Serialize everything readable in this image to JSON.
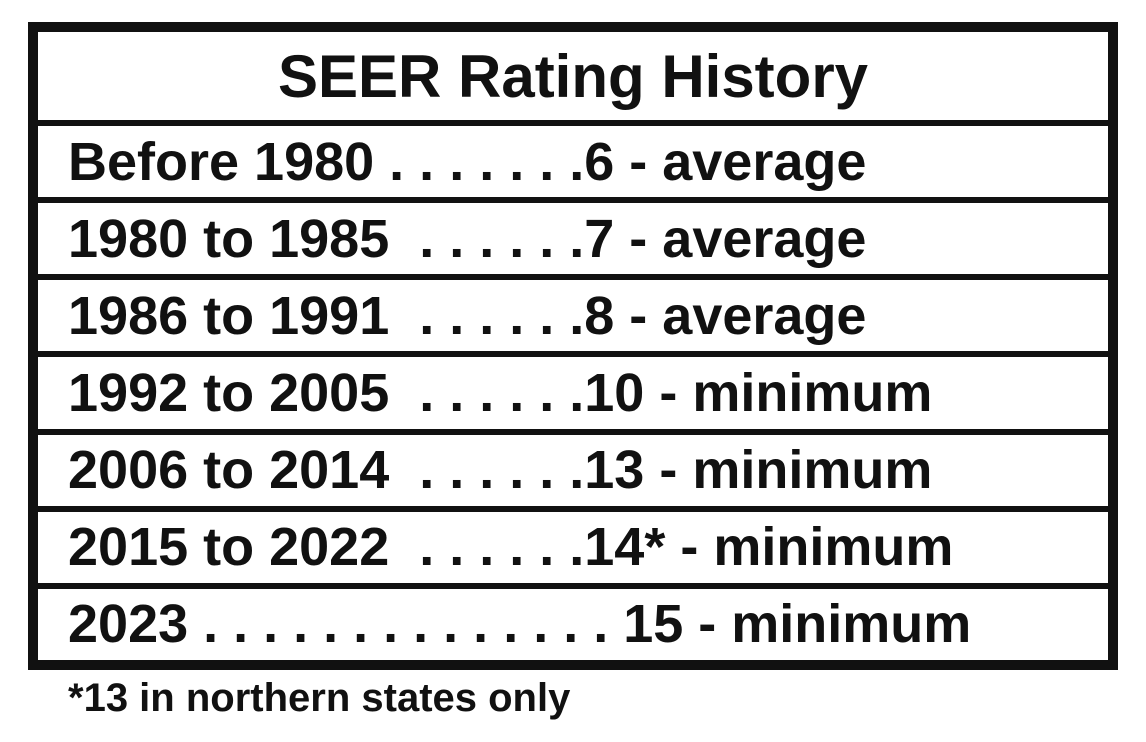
{
  "title": "SEER Rating History",
  "rows": [
    "Before 1980 . . . . . . .6 - average",
    "1980 to 1985  . . . . . .7 - average",
    "1986 to 1991  . . . . . .8 - average",
    "1992 to 2005  . . . . . .10 - minimum",
    "2006 to 2014  . . . . . .13 - minimum",
    "2015 to 2022  . . . . . .14* - minimum",
    "2023 . . . . . . . . . . . . . . 15 - minimum"
  ],
  "footnote": "*13 in northern states only"
}
